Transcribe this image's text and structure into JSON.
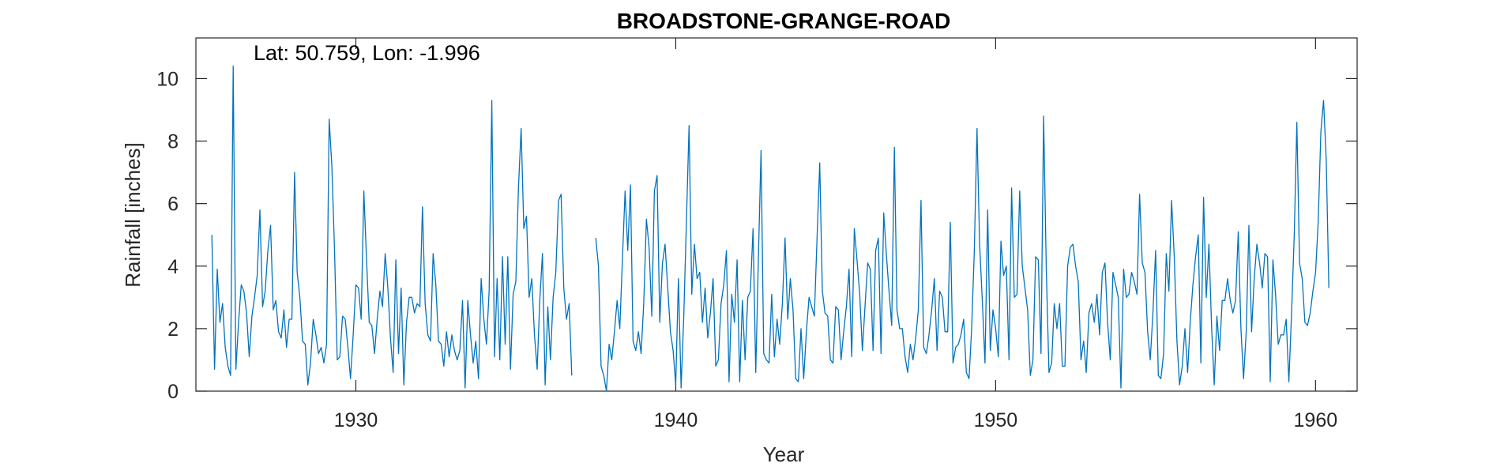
{
  "chart_data": {
    "type": "line",
    "title": "BROADSTONE-GRANGE-ROAD",
    "annotation": "Lat: 50.759, Lon: -1.996",
    "xlabel": "Year",
    "ylabel": "Rainfall [inches]",
    "xlim": [
      1925.0,
      1961.3
    ],
    "ylim": [
      0,
      11.3
    ],
    "xticks": [
      1930,
      1940,
      1950,
      1960
    ],
    "yticks": [
      0,
      2,
      4,
      6,
      8,
      10
    ],
    "xtick_labels": [
      "1930",
      "1940",
      "1950",
      "1960"
    ],
    "ytick_labels": [
      "0",
      "2",
      "4",
      "6",
      "8",
      "10"
    ],
    "grid": false,
    "line_color": "#0072BD",
    "series": [
      {
        "segments": [
          {
            "x_start": 1925.5,
            "values": [
              5.0,
              0.7,
              3.9,
              2.2,
              2.8,
              1.4,
              0.8,
              0.5,
              10.4,
              0.7,
              2.2,
              3.4,
              3.2,
              2.5,
              1.1,
              2.4,
              3.0,
              3.7,
              5.8,
              2.7,
              3.2,
              4.5,
              5.3,
              2.6,
              2.9,
              1.9,
              1.7,
              2.6,
              1.4,
              2.3,
              2.3,
              7.0,
              3.8,
              3.0,
              1.6,
              1.5,
              0.2,
              0.9,
              2.3,
              1.8,
              1.2,
              1.4,
              0.9,
              1.5,
              8.7,
              7.2,
              4.5,
              1.0,
              1.1,
              2.4,
              2.3,
              1.4,
              0.4,
              1.8,
              3.4,
              3.3,
              2.3,
              6.4,
              4.2,
              2.2,
              2.1,
              1.2,
              2.3,
              3.2,
              2.7,
              4.4,
              3.3,
              1.7,
              0.6,
              4.2,
              1.2,
              3.3,
              0.2,
              2.2,
              3.0,
              3.0,
              2.5,
              2.8,
              2.7,
              5.9,
              2.8,
              1.8,
              1.6,
              4.4,
              3.4,
              1.6,
              1.5,
              0.8,
              1.9,
              1.1,
              1.8,
              1.3,
              1.0,
              1.3,
              2.9,
              0.1,
              2.9,
              1.8,
              0.9,
              1.6,
              0.4,
              3.6,
              2.3,
              1.5,
              3.2,
              9.3,
              1.1,
              3.6,
              1.0,
              4.3,
              1.5,
              4.3,
              0.7,
              3.1,
              3.5,
              6.5,
              8.4,
              5.2,
              5.6,
              3.0,
              3.6,
              1.8,
              0.7,
              2.9,
              4.4,
              0.2,
              2.7,
              1.0,
              3.0,
              3.8,
              6.1,
              6.3,
              3.3,
              2.3,
              2.8,
              0.5
            ]
          },
          {
            "x_start": 1937.5,
            "values": [
              4.9,
              4.0,
              0.8,
              0.5,
              0.0,
              1.5,
              1.0,
              1.9,
              2.9,
              2.0,
              4.2,
              6.4,
              4.5,
              6.6,
              1.6,
              1.3,
              1.9,
              1.2,
              2.8,
              5.5,
              4.6,
              2.4,
              6.4,
              6.9,
              2.2,
              4.1,
              4.7,
              3.3,
              1.9,
              1.3,
              0.2,
              3.6,
              0.1,
              2.4,
              5.4,
              8.5,
              3.1,
              4.7,
              3.6,
              3.8,
              2.2,
              3.3,
              1.7,
              2.5,
              3.6,
              0.8,
              1.0,
              2.8,
              3.4,
              4.5,
              0.3,
              3.1,
              2.2,
              4.2,
              0.3,
              2.9,
              1.0,
              3.0,
              3.2,
              5.2,
              0.6,
              4.3,
              7.7,
              1.2,
              1.0,
              0.9,
              3.1,
              1.1,
              2.3,
              1.5,
              2.8,
              4.9,
              2.3,
              3.6,
              2.6,
              0.4,
              0.3,
              2.0,
              0.4,
              1.9,
              3.0,
              2.7,
              2.4,
              4.9,
              7.3,
              3.2,
              2.5,
              2.4,
              1.0,
              0.9,
              2.7,
              2.6,
              1.0,
              1.9,
              2.7,
              3.9,
              1.1,
              5.2,
              4.2,
              3.1,
              1.3,
              2.7,
              4.1,
              3.9,
              1.3,
              4.5,
              4.9,
              1.2,
              5.7,
              4.4,
              3.2,
              2.1,
              7.8,
              2.6,
              2.0,
              2.0,
              1.1,
              0.6,
              1.5,
              1.0,
              1.7,
              2.6,
              6.1,
              1.4,
              1.2,
              1.8,
              2.6,
              3.6,
              1.3,
              3.2,
              3.0,
              1.9,
              1.9,
              5.4,
              0.9,
              1.4,
              1.5,
              1.8,
              2.3,
              0.6,
              0.4,
              2.0,
              4.5,
              8.4,
              4.7,
              2.9,
              0.9,
              5.8,
              1.3,
              2.6,
              2.0,
              1.1,
              4.8,
              3.7,
              4.0,
              1.0,
              6.5,
              3.0,
              3.1,
              6.4,
              4.0,
              3.3,
              2.6,
              0.5,
              1.0,
              4.3,
              4.2,
              1.2,
              8.8,
              3.9,
              0.6,
              0.9,
              2.8,
              2.0,
              2.8,
              0.8,
              0.8,
              4.0,
              4.6,
              4.7,
              4.0,
              3.5,
              1.0,
              1.6,
              0.6,
              2.5,
              2.8,
              2.2,
              3.1,
              1.8,
              3.8,
              4.1,
              2.2,
              1.0,
              3.8,
              3.4,
              3.0,
              0.1,
              3.9,
              3.0,
              3.1,
              3.8,
              3.5,
              3.1,
              6.3,
              4.1,
              3.8,
              1.9,
              1.0,
              2.5,
              4.5,
              0.5,
              0.4,
              1.2,
              4.4,
              3.2,
              6.1,
              4.3,
              1.6,
              0.2,
              0.8,
              2.0,
              0.6,
              2.2,
              3.4,
              4.3,
              5.0,
              0.9,
              6.2,
              3.0,
              4.7,
              2.1,
              0.2,
              2.4,
              1.3,
              2.9,
              2.9,
              3.6,
              2.9,
              2.5,
              2.9,
              5.1,
              2.0,
              0.4,
              1.9,
              5.3,
              1.9,
              3.6,
              4.7,
              4.1,
              3.3,
              4.4,
              4.3,
              0.3,
              4.2,
              3.1,
              1.5,
              1.8,
              1.8,
              2.3,
              0.3,
              2.5,
              5.0,
              8.6,
              4.1,
              3.6,
              2.2,
              2.1,
              2.5,
              3.2,
              3.8,
              5.4,
              8.3,
              9.3,
              7.4,
              3.3
            ]
          }
        ]
      }
    ]
  }
}
